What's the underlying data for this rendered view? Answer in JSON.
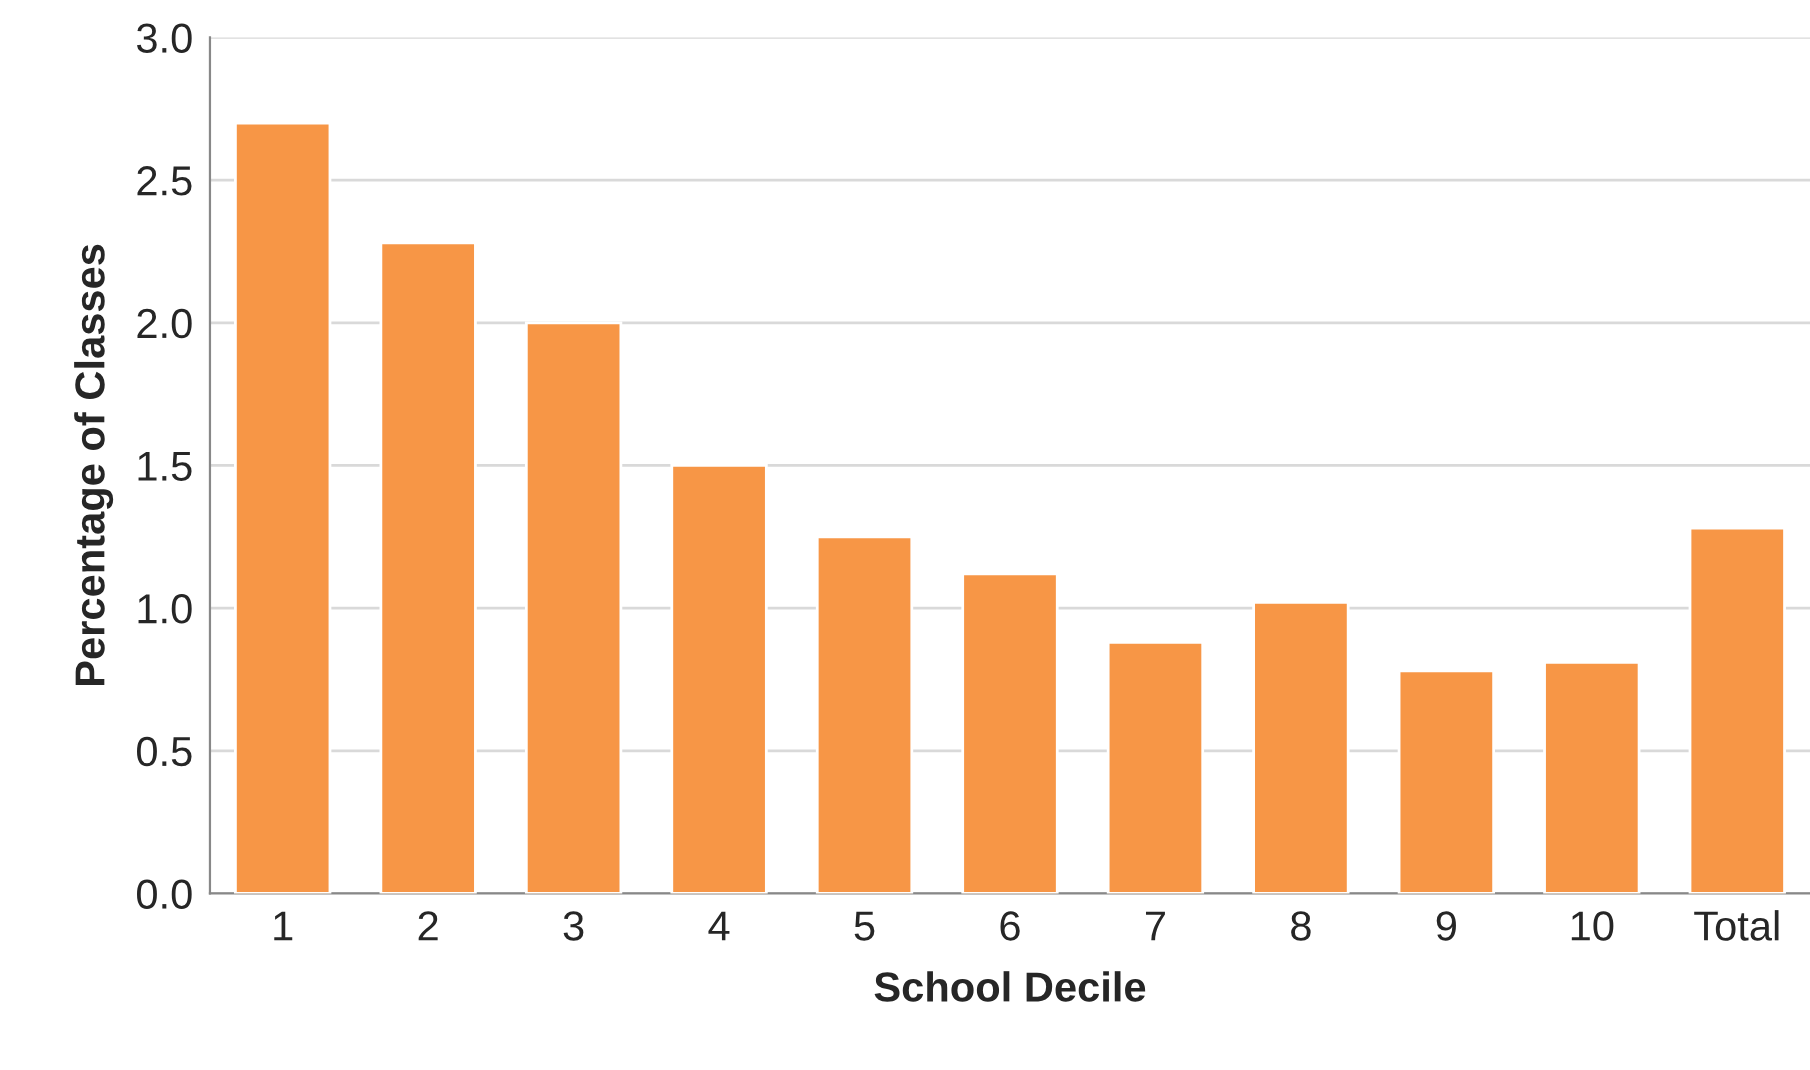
{
  "chart_data": {
    "type": "bar",
    "xlabel": "School Decile",
    "ylabel": "Percentage of Classes",
    "categories": [
      "1",
      "2",
      "3",
      "4",
      "5",
      "6",
      "7",
      "8",
      "9",
      "10",
      "Total"
    ],
    "values": [
      2.7,
      2.28,
      2.0,
      1.5,
      1.25,
      1.12,
      0.88,
      1.02,
      0.78,
      0.81,
      1.28
    ],
    "color": "#f79646",
    "ylim": [
      0,
      3
    ],
    "yticks": [
      {
        "value": 0,
        "label": "0.0"
      },
      {
        "value": 0.5,
        "label": "0.5"
      },
      {
        "value": 1,
        "label": "1.0"
      },
      {
        "value": 1.5,
        "label": "1.5"
      },
      {
        "value": 2,
        "label": "2.0"
      },
      {
        "value": 2.5,
        "label": "2.5"
      },
      {
        "value": 3,
        "label": "3.0"
      }
    ],
    "grid": "y",
    "legend": false
  }
}
